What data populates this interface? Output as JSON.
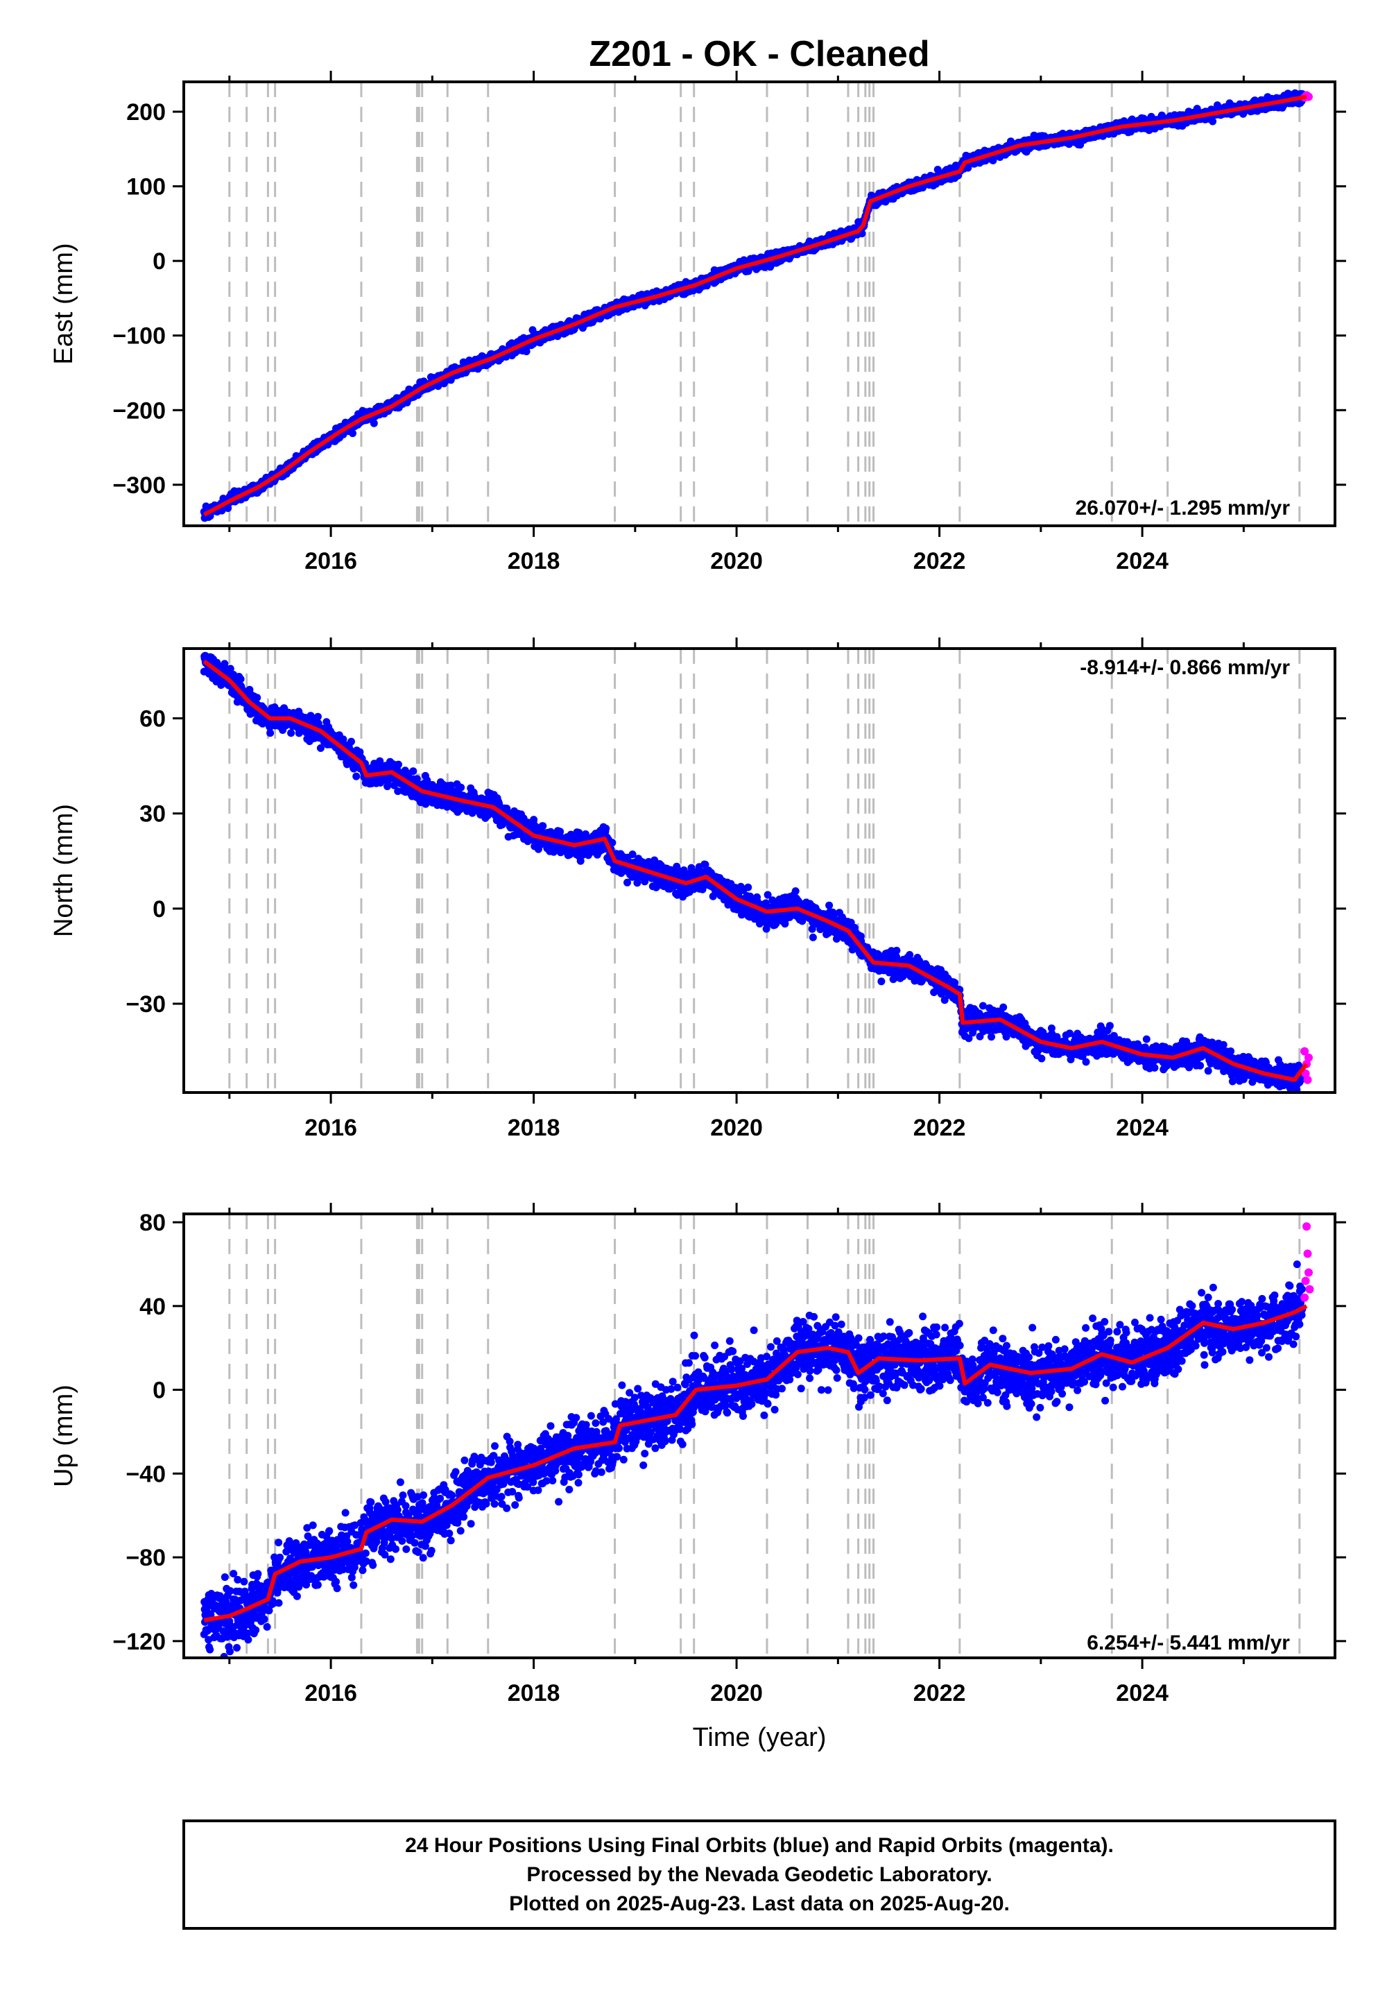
{
  "title": "Z201  - OK - Cleaned",
  "xlabel": "Time (year)",
  "caption": [
    "24 Hour Positions Using Final Orbits (blue) and Rapid Orbits (magenta).",
    "Processed by the Nevada Geodetic Laboratory.",
    "Plotted on 2025-Aug-23. Last data on 2025-Aug-20."
  ],
  "colors": {
    "final_orbits": "#0000ff",
    "rapid_orbits": "#ff00ff",
    "model_line": "#ff0000",
    "event_lines": "#bdbdbd",
    "frame": "#000000"
  },
  "chart_data": [
    {
      "type": "scatter",
      "component": "east",
      "ylabel": "East (mm)",
      "rate_label": "26.070+/- 1.295 mm/yr",
      "xlim": [
        2014.55,
        2025.9
      ],
      "ylim": [
        -355,
        240
      ],
      "x_ticks": [
        2016,
        2018,
        2020,
        2022,
        2024
      ],
      "y_ticks": [
        -300,
        -200,
        -100,
        0,
        100,
        200
      ],
      "grid": false,
      "event_lines": [
        2015.0,
        2015.17,
        2015.38,
        2015.45,
        2016.3,
        2016.85,
        2016.87,
        2016.9,
        2017.15,
        2017.55,
        2018.8,
        2019.45,
        2019.58,
        2020.3,
        2020.7,
        2021.1,
        2021.2,
        2021.27,
        2021.31,
        2021.35,
        2022.2,
        2023.7,
        2024.25,
        2025.55
      ],
      "trend_points": [
        [
          2014.75,
          -340
        ],
        [
          2015.0,
          -322
        ],
        [
          2015.3,
          -302
        ],
        [
          2015.5,
          -285
        ],
        [
          2015.8,
          -255
        ],
        [
          2016.1,
          -228
        ],
        [
          2016.3,
          -212
        ],
        [
          2016.6,
          -195
        ],
        [
          2016.9,
          -170
        ],
        [
          2017.2,
          -150
        ],
        [
          2017.6,
          -130
        ],
        [
          2018.0,
          -105
        ],
        [
          2018.4,
          -85
        ],
        [
          2018.8,
          -62
        ],
        [
          2019.2,
          -48
        ],
        [
          2019.6,
          -32
        ],
        [
          2020.0,
          -10
        ],
        [
          2020.4,
          5
        ],
        [
          2020.8,
          22
        ],
        [
          2021.2,
          40
        ],
        [
          2021.25,
          48
        ],
        [
          2021.32,
          80
        ],
        [
          2021.7,
          100
        ],
        [
          2022.2,
          120
        ],
        [
          2022.25,
          132
        ],
        [
          2022.8,
          155
        ],
        [
          2023.3,
          165
        ],
        [
          2023.8,
          180
        ],
        [
          2024.3,
          188
        ],
        [
          2024.8,
          200
        ],
        [
          2025.3,
          212
        ],
        [
          2025.62,
          220
        ]
      ],
      "noise_sd": 3.5,
      "rapid_points": [
        [
          2025.6,
          219
        ],
        [
          2025.62,
          222
        ],
        [
          2025.64,
          220
        ]
      ]
    },
    {
      "type": "scatter",
      "component": "north",
      "ylabel": "North (mm)",
      "rate_label": "-8.914+/- 0.866 mm/yr",
      "xlim": [
        2014.55,
        2025.9
      ],
      "ylim": [
        -58,
        82
      ],
      "x_ticks": [
        2016,
        2018,
        2020,
        2022,
        2024
      ],
      "y_ticks": [
        -30,
        0,
        30,
        60
      ],
      "grid": false,
      "event_lines": [
        2015.0,
        2015.17,
        2015.38,
        2015.45,
        2016.3,
        2016.85,
        2016.87,
        2016.9,
        2017.15,
        2017.55,
        2018.8,
        2019.45,
        2019.58,
        2020.3,
        2020.7,
        2021.1,
        2021.2,
        2021.27,
        2021.31,
        2021.35,
        2022.2,
        2023.7,
        2024.25,
        2025.55
      ],
      "trend_points": [
        [
          2014.75,
          78
        ],
        [
          2015.0,
          72
        ],
        [
          2015.2,
          65
        ],
        [
          2015.4,
          60
        ],
        [
          2015.6,
          60
        ],
        [
          2015.9,
          56
        ],
        [
          2016.1,
          51
        ],
        [
          2016.3,
          46
        ],
        [
          2016.35,
          42
        ],
        [
          2016.6,
          43
        ],
        [
          2016.9,
          37
        ],
        [
          2017.3,
          34
        ],
        [
          2017.6,
          32
        ],
        [
          2018.0,
          23
        ],
        [
          2018.4,
          20
        ],
        [
          2018.7,
          22
        ],
        [
          2018.8,
          15
        ],
        [
          2019.2,
          11
        ],
        [
          2019.5,
          8
        ],
        [
          2019.7,
          10
        ],
        [
          2020.0,
          3
        ],
        [
          2020.3,
          -1
        ],
        [
          2020.6,
          0
        ],
        [
          2020.9,
          -4
        ],
        [
          2021.1,
          -7
        ],
        [
          2021.35,
          -17
        ],
        [
          2021.7,
          -18
        ],
        [
          2022.1,
          -25
        ],
        [
          2022.2,
          -27
        ],
        [
          2022.23,
          -36
        ],
        [
          2022.6,
          -35
        ],
        [
          2023.0,
          -42
        ],
        [
          2023.3,
          -44
        ],
        [
          2023.6,
          -42
        ],
        [
          2024.0,
          -46
        ],
        [
          2024.3,
          -47
        ],
        [
          2024.6,
          -44
        ],
        [
          2024.9,
          -49
        ],
        [
          2025.2,
          -52
        ],
        [
          2025.5,
          -54
        ],
        [
          2025.62,
          -49
        ]
      ],
      "noise_sd": 1.8,
      "rapid_points": [
        [
          2025.6,
          -45
        ],
        [
          2025.61,
          -52
        ],
        [
          2025.62,
          -49
        ],
        [
          2025.63,
          -54
        ],
        [
          2025.64,
          -47
        ]
      ]
    },
    {
      "type": "scatter",
      "component": "up",
      "ylabel": "Up (mm)",
      "rate_label": "6.254+/- 5.441 mm/yr",
      "xlim": [
        2014.55,
        2025.9
      ],
      "ylim": [
        -128,
        84
      ],
      "x_ticks": [
        2016,
        2018,
        2020,
        2022,
        2024
      ],
      "y_ticks": [
        -120,
        -80,
        -40,
        0,
        40,
        80
      ],
      "grid": false,
      "event_lines": [
        2015.0,
        2015.17,
        2015.38,
        2015.45,
        2016.3,
        2016.85,
        2016.87,
        2016.9,
        2017.15,
        2017.55,
        2018.8,
        2019.45,
        2019.58,
        2020.3,
        2020.7,
        2021.1,
        2021.2,
        2021.27,
        2021.31,
        2021.35,
        2022.2,
        2023.7,
        2024.25,
        2025.55
      ],
      "trend_points": [
        [
          2014.75,
          -110
        ],
        [
          2015.0,
          -108
        ],
        [
          2015.2,
          -104
        ],
        [
          2015.38,
          -100
        ],
        [
          2015.45,
          -88
        ],
        [
          2015.7,
          -82
        ],
        [
          2016.0,
          -80
        ],
        [
          2016.3,
          -76
        ],
        [
          2016.35,
          -68
        ],
        [
          2016.6,
          -62
        ],
        [
          2016.9,
          -63
        ],
        [
          2017.2,
          -55
        ],
        [
          2017.55,
          -42
        ],
        [
          2018.0,
          -36
        ],
        [
          2018.4,
          -28
        ],
        [
          2018.8,
          -25
        ],
        [
          2018.85,
          -17
        ],
        [
          2019.4,
          -12
        ],
        [
          2019.6,
          0
        ],
        [
          2020.0,
          2
        ],
        [
          2020.3,
          5
        ],
        [
          2020.6,
          18
        ],
        [
          2020.9,
          20
        ],
        [
          2021.1,
          18
        ],
        [
          2021.2,
          8
        ],
        [
          2021.4,
          15
        ],
        [
          2021.8,
          14
        ],
        [
          2022.2,
          15
        ],
        [
          2022.25,
          3
        ],
        [
          2022.5,
          12
        ],
        [
          2022.9,
          8
        ],
        [
          2023.3,
          10
        ],
        [
          2023.6,
          17
        ],
        [
          2023.9,
          13
        ],
        [
          2024.25,
          20
        ],
        [
          2024.6,
          32
        ],
        [
          2024.9,
          29
        ],
        [
          2025.2,
          32
        ],
        [
          2025.5,
          37
        ],
        [
          2025.62,
          40
        ]
      ],
      "noise_sd": 7,
      "rapid_points": [
        [
          2025.6,
          44
        ],
        [
          2025.61,
          52
        ],
        [
          2025.62,
          78
        ],
        [
          2025.63,
          65
        ],
        [
          2025.64,
          56
        ],
        [
          2025.65,
          48
        ]
      ]
    }
  ]
}
